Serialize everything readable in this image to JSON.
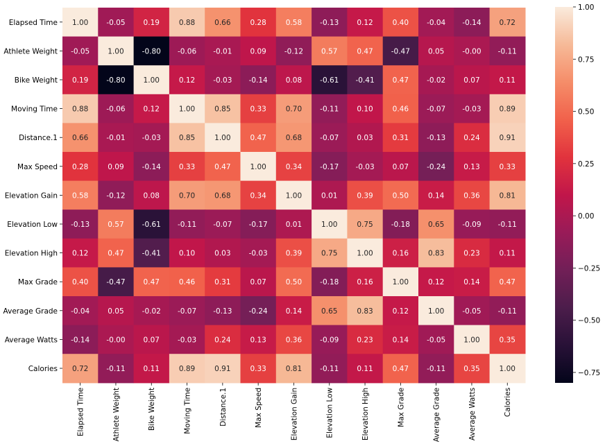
{
  "chart_data": {
    "type": "heatmap",
    "title": "",
    "xlabel": "",
    "ylabel": "",
    "labels": [
      "Elapsed Time",
      "Athlete Weight",
      "Bike Weight",
      "Moving Time",
      "Distance.1",
      "Max Speed",
      "Elevation Gain",
      "Elevation Low",
      "Elevation High",
      "Max Grade",
      "Average Grade",
      "Average Watts",
      "Calories"
    ],
    "matrix": [
      [
        1.0,
        -0.05,
        0.19,
        0.88,
        0.66,
        0.28,
        0.58,
        -0.13,
        0.12,
        0.4,
        -0.04,
        -0.14,
        0.72
      ],
      [
        -0.05,
        1.0,
        -0.8,
        -0.06,
        -0.01,
        0.09,
        -0.12,
        0.57,
        0.47,
        -0.47,
        0.05,
        -0.0,
        -0.11
      ],
      [
        0.19,
        -0.8,
        1.0,
        0.12,
        -0.03,
        -0.14,
        0.08,
        -0.61,
        -0.41,
        0.47,
        -0.02,
        0.07,
        0.11
      ],
      [
        0.88,
        -0.06,
        0.12,
        1.0,
        0.85,
        0.33,
        0.7,
        -0.11,
        0.1,
        0.46,
        -0.07,
        -0.03,
        0.89
      ],
      [
        0.66,
        -0.01,
        -0.03,
        0.85,
        1.0,
        0.47,
        0.68,
        -0.07,
        0.03,
        0.31,
        -0.13,
        0.24,
        0.91
      ],
      [
        0.28,
        0.09,
        -0.14,
        0.33,
        0.47,
        1.0,
        0.34,
        -0.17,
        -0.03,
        0.07,
        -0.24,
        0.13,
        0.33
      ],
      [
        0.58,
        -0.12,
        0.08,
        0.7,
        0.68,
        0.34,
        1.0,
        0.01,
        0.39,
        0.5,
        0.14,
        0.36,
        0.81
      ],
      [
        -0.13,
        0.57,
        -0.61,
        -0.11,
        -0.07,
        -0.17,
        0.01,
        1.0,
        0.75,
        -0.18,
        0.65,
        -0.09,
        -0.11
      ],
      [
        0.12,
        0.47,
        -0.41,
        0.1,
        0.03,
        -0.03,
        0.39,
        0.75,
        1.0,
        0.16,
        0.83,
        0.23,
        0.11
      ],
      [
        0.4,
        -0.47,
        0.47,
        0.46,
        0.31,
        0.07,
        0.5,
        -0.18,
        0.16,
        1.0,
        0.12,
        0.14,
        0.47
      ],
      [
        -0.04,
        0.05,
        -0.02,
        -0.07,
        -0.13,
        -0.24,
        0.14,
        0.65,
        0.83,
        0.12,
        1.0,
        -0.05,
        -0.11
      ],
      [
        -0.14,
        -0.0,
        0.07,
        -0.03,
        0.24,
        0.13,
        0.36,
        -0.09,
        0.23,
        0.14,
        -0.05,
        1.0,
        0.35
      ],
      [
        0.72,
        -0.11,
        0.11,
        0.89,
        0.91,
        0.33,
        0.81,
        -0.11,
        0.11,
        0.47,
        -0.11,
        0.35,
        1.0
      ]
    ],
    "value_format": "2 decimals",
    "colormap": "rocket",
    "vmin": -0.8,
    "vmax": 1.0,
    "colorbar_ticks": [
      1.0,
      0.75,
      0.5,
      0.25,
      0.0,
      -0.25,
      -0.5,
      -0.75
    ],
    "colorbar_tick_labels": [
      "1.00",
      "0.75",
      "0.50",
      "0.25",
      "0.00",
      "−0.25",
      "−0.50",
      "−0.75"
    ],
    "colorbar_placement": "right",
    "grid": false
  }
}
